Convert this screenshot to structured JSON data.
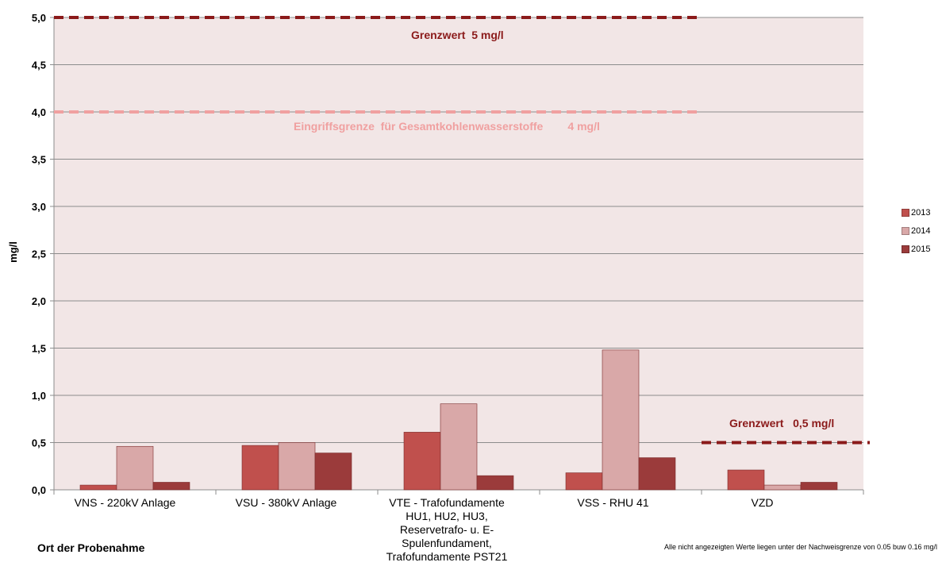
{
  "chart_data": {
    "type": "bar",
    "ylabel": "mg/l",
    "xlabel": "Ort der Probenahme",
    "ylim": [
      0,
      5.0
    ],
    "y_ticks": [
      "0,0",
      "0,5",
      "1,0",
      "1,5",
      "2,0",
      "2,5",
      "3,0",
      "3,5",
      "4,0",
      "4,5",
      "5,0"
    ],
    "categories": [
      "VNS - 220kV Anlage",
      "VSU - 380kV Anlage",
      "VTE - Trafofundamente HU1, HU2, HU3, Reservetrafo- u. E-Spulenfundament, Trafofundamente PST21",
      "VSS - RHU 41",
      "VZD"
    ],
    "series": [
      {
        "name": "2013",
        "color": "#c0504d",
        "values": [
          0.05,
          0.47,
          0.61,
          0.18,
          0.21
        ]
      },
      {
        "name": "2014",
        "color": "#d9a8a8",
        "values": [
          0.46,
          0.5,
          0.91,
          1.48,
          0.05
        ]
      },
      {
        "name": "2015",
        "color": "#9b3b3b",
        "values": [
          0.08,
          0.39,
          0.15,
          0.34,
          0.08
        ]
      }
    ],
    "reference_lines": [
      {
        "label": "Grenzwert  5 mg/l",
        "value": 5.0,
        "color": "#8b1a1a",
        "category_span": [
          0,
          3
        ]
      },
      {
        "label": "Eingriffsgrenze  für Gesamtkohlenwasserstoffe        4 mg/l",
        "value": 4.0,
        "color": "#f0a0a0",
        "category_span": [
          0,
          3
        ]
      },
      {
        "label": "Grenzwert   0,5 mg/l",
        "value": 0.5,
        "color": "#8b1a1a",
        "category_span": [
          4,
          4
        ]
      }
    ],
    "grid": true,
    "legend_position": "right",
    "plot_background": "#f2e6e6"
  },
  "footnote": "Alle nicht angezeigten Werte liegen unter der Nachweisgrenze von 0.05 buw 0.16 mg/l"
}
